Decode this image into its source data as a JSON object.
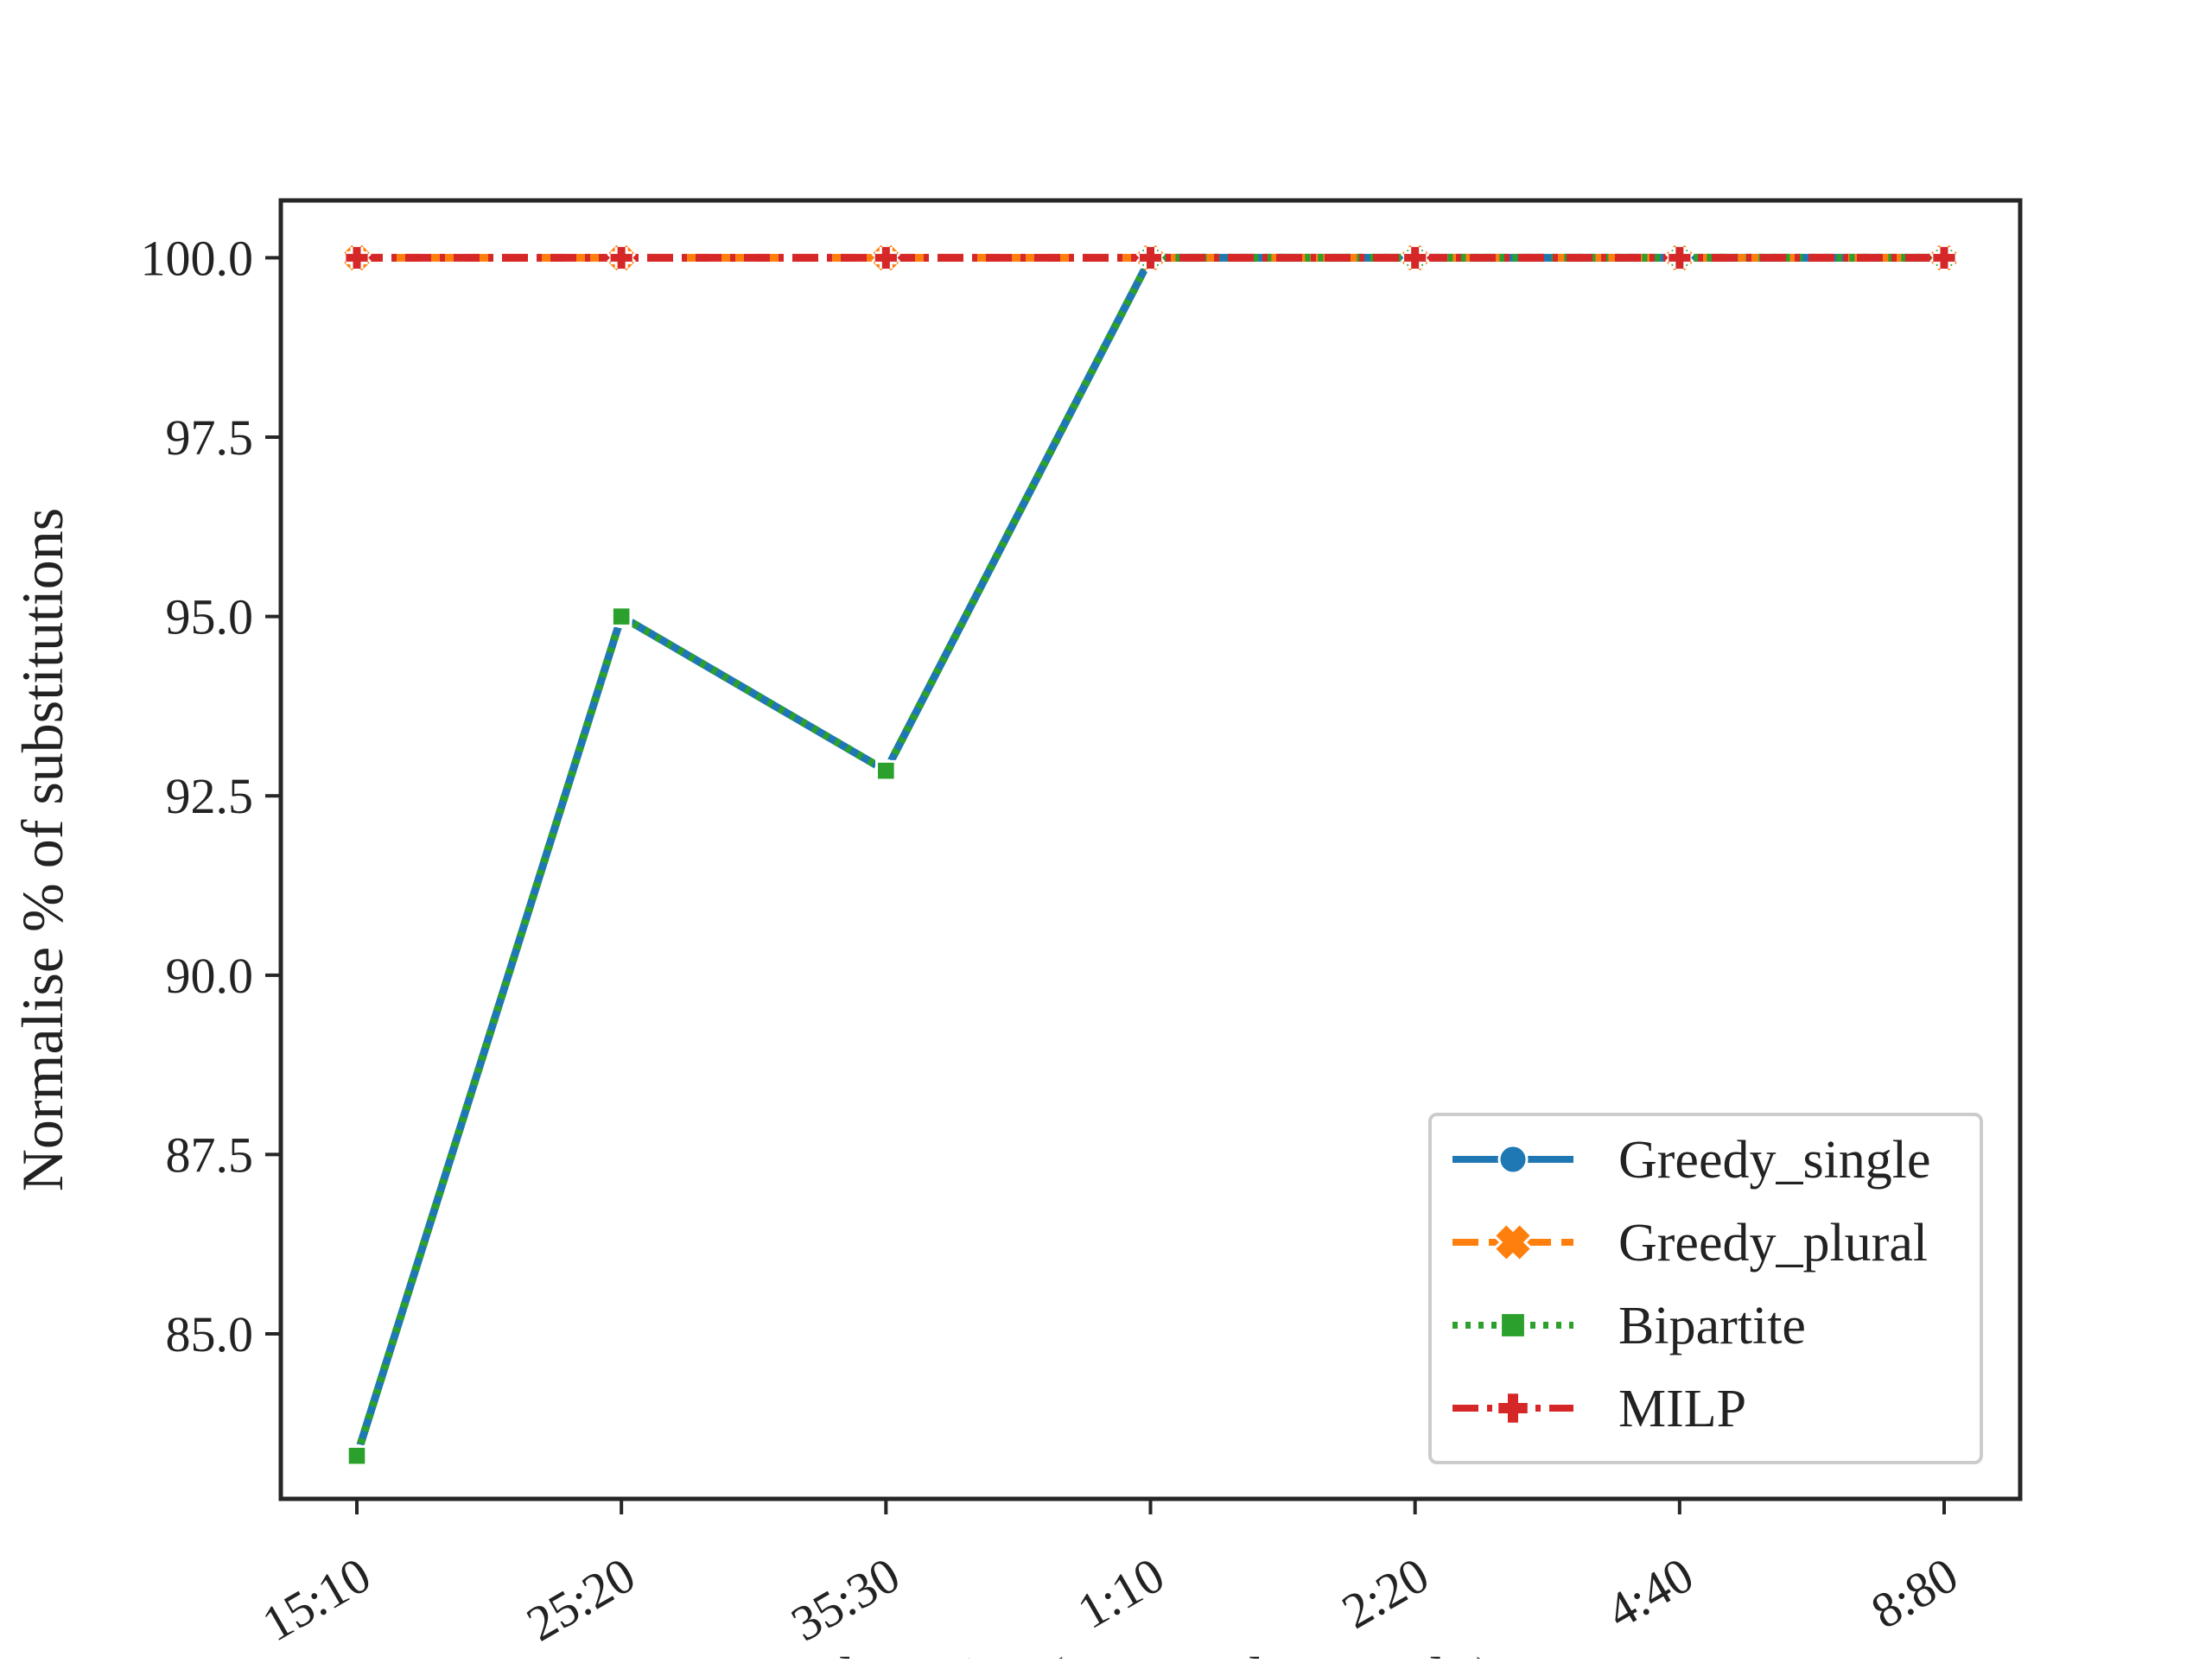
{
  "chart_data": {
    "type": "line",
    "title": "",
    "xlabel": "Fleet size (Demand : Supply)",
    "ylabel": "Normalise % of substitutions",
    "categories": [
      "15:10",
      "25:20",
      "35:30",
      "1:10",
      "2:20",
      "4:40",
      "8:80"
    ],
    "ylim": [
      82.7,
      100.8
    ],
    "yticks": [
      "85.0",
      "87.5",
      "90.0",
      "92.5",
      "95.0",
      "97.5",
      "100.0"
    ],
    "ytick_values": [
      85.0,
      87.5,
      90.0,
      92.5,
      95.0,
      97.5,
      100.0
    ],
    "grid": false,
    "legend_position": "lower-right",
    "series": [
      {
        "name": "Greedy_single",
        "values": [
          83.3,
          95.0,
          92.85,
          100.0,
          100.0,
          100.0,
          100.0
        ],
        "color": "#1f77b4",
        "marker": "circle",
        "dash": "solid"
      },
      {
        "name": "Greedy_plural",
        "values": [
          100.0,
          100.0,
          100.0,
          100.0,
          100.0,
          100.0,
          100.0
        ],
        "color": "#ff7f0e",
        "marker": "x",
        "dash": "dashed"
      },
      {
        "name": "Bipartite",
        "values": [
          83.3,
          95.0,
          92.85,
          100.0,
          100.0,
          100.0,
          100.0
        ],
        "color": "#2ca02c",
        "marker": "square",
        "dash": "dotted"
      },
      {
        "name": "MILP",
        "values": [
          100.0,
          100.0,
          100.0,
          100.0,
          100.0,
          100.0,
          100.0
        ],
        "color": "#d62728",
        "marker": "plus",
        "dash": "dashdot"
      }
    ]
  }
}
